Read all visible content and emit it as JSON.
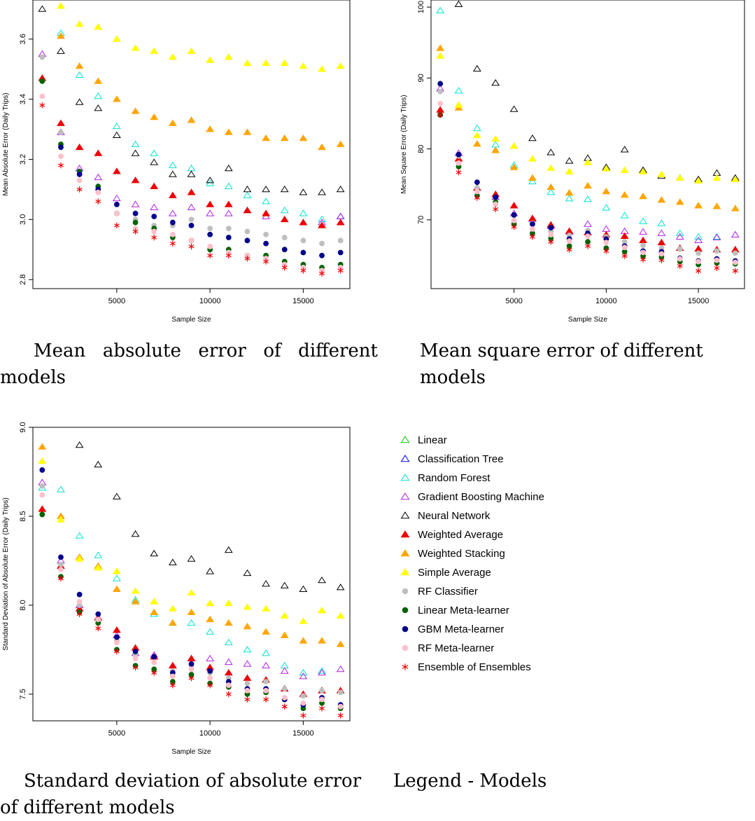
{
  "captions": {
    "mae": "Mean absolute error of different models",
    "mse": "Mean square error of different models",
    "sd": "Standard deviation of absolute error of different models",
    "legend": "Legend - Models"
  },
  "chart_data": [
    {
      "id": "mae",
      "type": "scatter",
      "xlabel": "Sample Size",
      "ylabel": "Mean Absolute Error (Daily Trips)",
      "xlim": [
        500,
        17500
      ],
      "ylim": [
        2.77,
        3.73
      ],
      "xticks": [
        5000,
        10000,
        15000
      ],
      "yticks": [
        2.8,
        3.0,
        3.2,
        3.4,
        3.6
      ],
      "x": [
        1000,
        2000,
        3000,
        4000,
        5000,
        6000,
        7000,
        8000,
        9000,
        10000,
        11000,
        12000,
        13000,
        14000,
        15000,
        16000,
        17000
      ],
      "series": [
        {
          "name": "Linear",
          "values": [
            null,
            null,
            null,
            null,
            null,
            null,
            null,
            null,
            null,
            null,
            null,
            null,
            null,
            null,
            null,
            null,
            null
          ]
        },
        {
          "name": "Classification Tree",
          "values": [
            null,
            null,
            null,
            null,
            null,
            null,
            null,
            null,
            null,
            null,
            null,
            null,
            null,
            null,
            null,
            null,
            3.01
          ]
        },
        {
          "name": "Random Forest",
          "values": [
            null,
            3.62,
            3.48,
            3.41,
            3.31,
            3.25,
            3.22,
            3.18,
            3.17,
            3.12,
            3.11,
            3.08,
            3.06,
            3.03,
            3.02,
            3.0,
            null
          ]
        },
        {
          "name": "Gradient Boosting Machine",
          "values": [
            3.55,
            3.29,
            3.17,
            3.14,
            3.07,
            3.05,
            3.04,
            3.02,
            3.04,
            3.02,
            3.02,
            3.03,
            3.01,
            null,
            null,
            2.99,
            3.01
          ]
        },
        {
          "name": "Neural Network",
          "values": [
            3.7,
            3.56,
            3.39,
            3.37,
            3.28,
            3.22,
            3.19,
            3.15,
            3.15,
            3.13,
            3.17,
            3.1,
            3.1,
            3.1,
            3.09,
            3.09,
            3.1
          ]
        },
        {
          "name": "Weighted Average",
          "values": [
            3.47,
            3.32,
            3.24,
            3.22,
            3.16,
            3.13,
            3.11,
            3.08,
            3.09,
            3.05,
            3.05,
            3.03,
            3.02,
            3.0,
            2.99,
            2.98,
            2.99
          ]
        },
        {
          "name": "Weighted Stacking",
          "values": [
            null,
            3.61,
            3.51,
            3.46,
            3.4,
            3.36,
            3.34,
            3.32,
            3.33,
            3.3,
            3.29,
            3.29,
            3.27,
            3.27,
            3.27,
            3.24,
            3.25
          ]
        },
        {
          "name": "Simple Average",
          "values": [
            null,
            3.71,
            3.65,
            3.64,
            3.6,
            3.57,
            3.56,
            3.54,
            3.56,
            3.53,
            3.54,
            3.52,
            3.52,
            3.52,
            3.51,
            3.5,
            3.51
          ]
        },
        {
          "name": "RF Classifier",
          "values": [
            3.54,
            3.29,
            3.16,
            3.1,
            3.02,
            3.0,
            2.98,
            2.98,
            3.0,
            2.97,
            2.97,
            2.96,
            2.95,
            2.94,
            2.93,
            2.92,
            2.93
          ]
        },
        {
          "name": "Linear Meta-learner",
          "values": [
            3.46,
            3.25,
            3.16,
            3.11,
            3.02,
            2.99,
            2.97,
            2.94,
            2.93,
            2.9,
            2.9,
            2.88,
            2.88,
            2.86,
            2.85,
            2.84,
            2.85
          ]
        },
        {
          "name": "GBM Meta-learner",
          "values": [
            null,
            3.24,
            3.15,
            3.1,
            3.05,
            3.02,
            3.01,
            2.99,
            2.98,
            2.95,
            2.94,
            2.93,
            2.92,
            2.9,
            2.89,
            2.88,
            2.89
          ]
        },
        {
          "name": "RF Meta-learner",
          "values": [
            3.41,
            3.21,
            3.13,
            3.09,
            3.02,
            2.97,
            2.96,
            2.95,
            2.93,
            2.91,
            2.89,
            2.88,
            2.87,
            2.85,
            2.84,
            2.83,
            2.84
          ]
        },
        {
          "name": "Ensemble of Ensembles",
          "values": [
            3.38,
            3.18,
            3.1,
            3.06,
            2.98,
            2.96,
            2.94,
            2.92,
            2.91,
            2.88,
            2.88,
            2.87,
            2.86,
            2.84,
            2.83,
            2.82,
            2.83
          ]
        }
      ]
    },
    {
      "id": "mse",
      "type": "scatter",
      "xlabel": "Sample Size",
      "ylabel": "Mean Square Error (Daily Trips)",
      "xlim": [
        500,
        17500
      ],
      "ylim": [
        60.3,
        101
      ],
      "xticks": [
        5000,
        10000,
        15000
      ],
      "yticks": [
        70,
        80,
        90,
        100
      ],
      "x": [
        1000,
        2000,
        3000,
        4000,
        5000,
        6000,
        7000,
        8000,
        9000,
        10000,
        11000,
        12000,
        13000,
        14000,
        15000,
        16000,
        17000
      ],
      "series": [
        {
          "name": "Linear",
          "values": [
            null,
            null,
            null,
            null,
            null,
            null,
            null,
            null,
            null,
            null,
            null,
            null,
            null,
            null,
            null,
            null,
            null
          ]
        },
        {
          "name": "Classification Tree",
          "values": [
            null,
            null,
            null,
            null,
            null,
            null,
            null,
            null,
            null,
            null,
            null,
            null,
            null,
            null,
            null,
            null,
            null
          ]
        },
        {
          "name": "Random Forest",
          "values": [
            99.5,
            88.2,
            82.9,
            80.6,
            77.7,
            75.4,
            73.9,
            73.0,
            72.9,
            71.7,
            70.6,
            69.8,
            69.5,
            68.1,
            67.6,
            67.6,
            null
          ]
        },
        {
          "name": "Gradient Boosting Machine",
          "values": [
            88.5,
            79.4,
            74.5,
            73.2,
            70.9,
            70.1,
            69.1,
            68.3,
            69.4,
            68.7,
            68.4,
            68.3,
            68.1,
            67.6,
            67.1,
            67.5,
            67.9
          ]
        },
        {
          "name": "Neural Network",
          "values": [
            null,
            100.4,
            91.3,
            89.3,
            85.6,
            81.5,
            79.5,
            78.3,
            78.7,
            77.4,
            79.9,
            77.0,
            76.2,
            75.9,
            75.7,
            76.6,
            75.9
          ]
        },
        {
          "name": "Weighted Average",
          "values": [
            85.5,
            78.6,
            74.5,
            73.6,
            72.0,
            70.2,
            69.3,
            68.4,
            68.2,
            67.9,
            67.7,
            67.1,
            66.8,
            66.0,
            65.9,
            65.8,
            65.8
          ]
        },
        {
          "name": "Weighted Stacking",
          "values": [
            94.2,
            85.8,
            80.7,
            79.8,
            77.4,
            75.9,
            74.6,
            73.8,
            74.8,
            74.0,
            73.5,
            73.3,
            72.8,
            72.5,
            72.0,
            71.9,
            71.6
          ]
        },
        {
          "name": "Simple Average",
          "values": [
            93.1,
            86.2,
            81.9,
            81.4,
            80.4,
            78.6,
            77.3,
            76.8,
            78.1,
            77.2,
            77.0,
            76.8,
            76.4,
            75.9,
            75.5,
            75.9,
            75.7
          ]
        },
        {
          "name": "RF Classifier",
          "values": [
            88.1,
            79.0,
            74.5,
            73.2,
            70.6,
            69.5,
            68.4,
            67.8,
            68.5,
            67.6,
            66.9,
            66.4,
            66.0,
            65.9,
            65.3,
            65.6,
            65.3
          ]
        },
        {
          "name": "Linear Meta-learner",
          "values": [
            84.8,
            77.5,
            73.4,
            72.5,
            69.4,
            68.1,
            67.4,
            66.3,
            66.9,
            66.0,
            65.5,
            64.9,
            64.8,
            64.1,
            63.7,
            63.9,
            63.8
          ]
        },
        {
          "name": "GBM Meta-learner",
          "values": [
            89.2,
            79.2,
            75.3,
            73.2,
            70.7,
            69.4,
            68.9,
            67.3,
            68.1,
            67.3,
            66.3,
            65.6,
            65.5,
            64.6,
            64.2,
            64.5,
            64.2
          ]
        },
        {
          "name": "RF Meta-learner",
          "values": [
            86.4,
            78.0,
            74.0,
            72.2,
            69.9,
            68.7,
            67.9,
            67.0,
            67.7,
            66.8,
            66.1,
            65.4,
            65.2,
            64.5,
            64.1,
            64.3,
            64.0
          ]
        },
        {
          "name": "Ensemble of Ensembles",
          "values": [
            84.8,
            76.7,
            73.1,
            71.5,
            69.0,
            67.6,
            66.9,
            65.8,
            66.3,
            65.6,
            64.9,
            64.4,
            64.3,
            63.5,
            62.8,
            63.2,
            62.8
          ]
        }
      ]
    },
    {
      "id": "sd",
      "type": "scatter",
      "xlabel": "Sample Size",
      "ylabel": "Standard Deviation of Absolute Error (Daily Trips)",
      "xlim": [
        500,
        17500
      ],
      "ylim": [
        7.35,
        9.0
      ],
      "xticks": [
        5000,
        10000,
        15000
      ],
      "yticks": [
        7.5,
        8.0,
        8.5,
        9.0
      ],
      "x": [
        1000,
        2000,
        3000,
        4000,
        5000,
        6000,
        7000,
        8000,
        9000,
        10000,
        11000,
        12000,
        13000,
        14000,
        15000,
        16000,
        17000
      ],
      "series": [
        {
          "name": "Linear",
          "values": [
            null,
            null,
            null,
            null,
            null,
            null,
            null,
            null,
            null,
            null,
            null,
            null,
            null,
            null,
            null,
            null,
            null
          ]
        },
        {
          "name": "Classification Tree",
          "values": [
            null,
            null,
            null,
            null,
            null,
            null,
            null,
            null,
            null,
            null,
            null,
            null,
            null,
            null,
            null,
            null,
            null
          ]
        },
        {
          "name": "Random Forest",
          "values": [
            8.66,
            8.65,
            8.39,
            8.28,
            8.15,
            8.03,
            7.95,
            7.9,
            7.9,
            7.85,
            7.79,
            7.75,
            7.73,
            7.66,
            7.62,
            7.63,
            null
          ]
        },
        {
          "name": "Gradient Boosting Machine",
          "values": [
            8.69,
            8.25,
            8.0,
            7.93,
            7.83,
            7.73,
            7.72,
            7.66,
            7.7,
            7.7,
            7.68,
            7.67,
            7.66,
            7.63,
            7.6,
            7.62,
            7.64
          ]
        },
        {
          "name": "Neural Network",
          "values": [
            null,
            null,
            8.9,
            8.79,
            8.61,
            8.4,
            8.29,
            8.24,
            8.26,
            8.19,
            8.31,
            8.18,
            8.12,
            8.11,
            8.09,
            8.14,
            8.1
          ]
        },
        {
          "name": "Weighted Average",
          "values": [
            8.54,
            8.22,
            7.98,
            7.93,
            7.86,
            7.76,
            7.71,
            7.66,
            7.7,
            7.65,
            7.62,
            7.59,
            7.58,
            7.53,
            7.5,
            7.52,
            7.52
          ]
        },
        {
          "name": "Weighted Stacking",
          "values": [
            8.89,
            8.5,
            8.27,
            8.22,
            8.09,
            8.02,
            7.96,
            7.9,
            7.96,
            7.92,
            7.9,
            7.88,
            7.85,
            7.83,
            7.8,
            7.8,
            7.78
          ]
        },
        {
          "name": "Simple Average",
          "values": [
            8.81,
            8.48,
            8.26,
            8.21,
            8.19,
            8.08,
            8.02,
            7.98,
            8.07,
            8.01,
            8.01,
            7.99,
            7.98,
            7.94,
            7.91,
            7.97,
            7.94
          ]
        },
        {
          "name": "RF Classifier",
          "values": [
            8.67,
            8.23,
            8.0,
            7.91,
            7.8,
            7.72,
            7.68,
            7.63,
            7.66,
            7.62,
            7.59,
            7.56,
            7.57,
            7.53,
            7.49,
            7.52,
            7.51
          ]
        },
        {
          "name": "Linear Meta-learner",
          "values": [
            8.51,
            8.16,
            7.96,
            7.9,
            7.75,
            7.66,
            7.64,
            7.57,
            7.61,
            7.56,
            7.54,
            7.5,
            7.51,
            7.47,
            7.42,
            7.45,
            7.42
          ]
        },
        {
          "name": "GBM Meta-learner",
          "values": [
            8.76,
            8.27,
            8.06,
            7.95,
            7.82,
            7.74,
            7.71,
            7.62,
            7.67,
            7.63,
            7.57,
            7.53,
            7.53,
            7.47,
            7.44,
            7.48,
            7.44
          ]
        },
        {
          "name": "RF Meta-learner",
          "values": [
            8.62,
            8.2,
            8.02,
            7.92,
            7.79,
            7.7,
            7.68,
            7.6,
            7.64,
            7.59,
            7.55,
            7.52,
            7.52,
            7.48,
            7.45,
            7.47,
            7.43
          ]
        },
        {
          "name": "Ensemble of Ensembles",
          "values": [
            null,
            8.15,
            7.95,
            7.87,
            7.74,
            7.65,
            7.62,
            7.55,
            7.59,
            7.55,
            7.5,
            7.47,
            7.47,
            7.43,
            7.38,
            7.42,
            7.38
          ]
        }
      ]
    }
  ],
  "legend": {
    "items": [
      {
        "label": "Linear",
        "color": "#00cd00",
        "shape": "triangle-open"
      },
      {
        "label": "Classification Tree",
        "color": "#0000ff",
        "shape": "triangle-open"
      },
      {
        "label": "Random Forest",
        "color": "#00e5d2",
        "shape": "triangle-open"
      },
      {
        "label": "Gradient Boosting Machine",
        "color": "#b020e8",
        "shape": "triangle-open"
      },
      {
        "label": "Neural Network",
        "color": "#000000",
        "shape": "triangle-open"
      },
      {
        "label": "Weighted Average",
        "color": "#ee0000",
        "shape": "triangle-filled"
      },
      {
        "label": "Weighted Stacking",
        "color": "#ffa500",
        "shape": "triangle-filled"
      },
      {
        "label": "Simple Average",
        "color": "#ffff00",
        "shape": "triangle-filled"
      },
      {
        "label": "RF Classifier",
        "color": "#bebebe",
        "shape": "circle"
      },
      {
        "label": "Linear Meta-learner",
        "color": "#006400",
        "shape": "circle"
      },
      {
        "label": "GBM Meta-learner",
        "color": "#00008b",
        "shape": "circle"
      },
      {
        "label": "RF Meta-learner",
        "color": "#ffc0cb",
        "shape": "circle"
      },
      {
        "label": "Ensemble of Ensembles",
        "color": "#ee0000",
        "shape": "asterisk"
      }
    ]
  }
}
